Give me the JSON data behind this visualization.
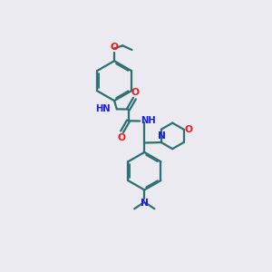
{
  "bg": "#eaeaf0",
  "bc": "#2d7070",
  "nc": "#1a1aee",
  "oc": "#ee1a1a",
  "lw": 1.6,
  "fs": 7.2,
  "xlim": [
    0,
    10
  ],
  "ylim": [
    0,
    10
  ]
}
